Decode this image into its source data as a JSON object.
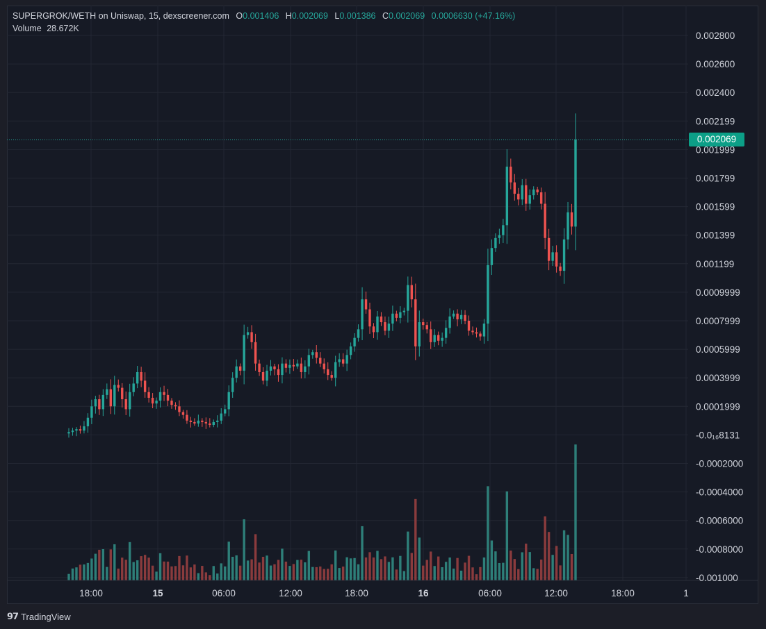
{
  "legend": {
    "title": "SUPERGROK/WETH on Uniswap, 15, dexscreener.com",
    "open_label": "O",
    "open": "0.001406",
    "high_label": "H",
    "high": "0.002069",
    "low_label": "L",
    "low": "0.001386",
    "close_label": "C",
    "close": "0.002069",
    "change": "0.0006630 (+47.16%)",
    "volume_label": "Volume",
    "volume": "28.672K"
  },
  "current_price": "0.002069",
  "branding": "TradingView",
  "colors": {
    "up": "#26a69a",
    "down": "#ef5350",
    "vol_up": "#2e7f79",
    "vol_down": "#8a3b3d",
    "tag": "#0c9f87"
  },
  "chart_data": {
    "type": "candlestick",
    "y_tick_labels": [
      "0.002800",
      "0.002600",
      "0.002400",
      "0.002199",
      "0.001999",
      "0.001799",
      "0.001599",
      "0.001399",
      "0.001199",
      "0.0009999",
      "0.0007999",
      "0.0005999",
      "0.0003999",
      "0.0001999",
      "-0.0₁₆8131",
      "-0.0002000",
      "-0.0004000",
      "-0.0006000",
      "-0.0008000",
      "-0.001000"
    ],
    "y_tick_values": [
      0.0028,
      0.0026,
      0.0024,
      0.0022,
      0.002,
      0.0018,
      0.0016,
      0.0014,
      0.0012,
      0.001,
      0.0008,
      0.0006,
      0.0004,
      0.0002,
      0,
      -0.0002,
      -0.0004,
      -0.0006,
      -0.0008,
      -0.001
    ],
    "ylim": [
      -0.001,
      0.0028
    ],
    "x_tick_labels": [
      {
        "label": "18:00",
        "bold": false
      },
      {
        "label": "15",
        "bold": true
      },
      {
        "label": "06:00",
        "bold": false
      },
      {
        "label": "12:00",
        "bold": false
      },
      {
        "label": "18:00",
        "bold": false
      },
      {
        "label": "16",
        "bold": true
      },
      {
        "label": "06:00",
        "bold": false
      },
      {
        "label": "12:00",
        "bold": false
      },
      {
        "label": "18:00",
        "bold": false
      },
      {
        "label": "1",
        "bold": false
      }
    ],
    "last_price": 0.002069,
    "close_series": [
      2e-05,
      3e-05,
      4e-05,
      3e-05,
      6e-05,
      0.00012,
      0.0002,
      0.00025,
      0.00018,
      0.00028,
      0.00032,
      0.0002,
      0.00035,
      0.00033,
      0.00025,
      0.00018,
      0.0003,
      0.00036,
      0.00044,
      0.00038,
      0.0003,
      0.00026,
      0.00022,
      0.00024,
      0.0003,
      0.00028,
      0.00024,
      0.00021,
      0.0002,
      0.00016,
      0.00014,
      0.0001,
      9e-05,
      8e-05,
      0.0001,
      9e-05,
      8e-05,
      7e-05,
      9e-05,
      0.0001,
      0.00015,
      0.00018,
      0.0003,
      0.0004,
      0.00048,
      0.00045,
      0.0007,
      0.00072,
      0.00065,
      0.0005,
      0.00044,
      0.00038,
      0.00045,
      0.00048,
      0.00046,
      0.00042,
      0.0005,
      0.00047,
      0.00049,
      0.00048,
      0.0005,
      0.00044,
      0.00048,
      0.00056,
      0.00058,
      0.00054,
      0.0005,
      0.00046,
      0.00042,
      0.0004,
      0.00051,
      0.00053,
      0.0005,
      0.00056,
      0.00062,
      0.00068,
      0.00074,
      0.00095,
      0.00088,
      0.00076,
      0.00072,
      0.00083,
      0.00079,
      0.00073,
      0.00078,
      0.00085,
      0.00082,
      0.00086,
      0.00087,
      0.00105,
      0.00095,
      0.00062,
      0.00079,
      0.00077,
      0.00074,
      0.00065,
      0.0007,
      0.00066,
      0.00068,
      0.00075,
      0.00083,
      0.00085,
      0.00081,
      0.00084,
      0.0008,
      0.00073,
      0.00072,
      0.00071,
      0.00069,
      0.00078,
      0.00119,
      0.00131,
      0.00138,
      0.0014,
      0.00147,
      0.00188,
      0.00177,
      0.00169,
      0.00165,
      0.00175,
      0.00162,
      0.00168,
      0.00172,
      0.0017,
      0.00162,
      0.00138,
      0.00122,
      0.00128,
      0.00118,
      0.00115,
      0.00137,
      0.00156,
      0.00146,
      0.002069
    ],
    "volume_scale_max": 50000
  }
}
